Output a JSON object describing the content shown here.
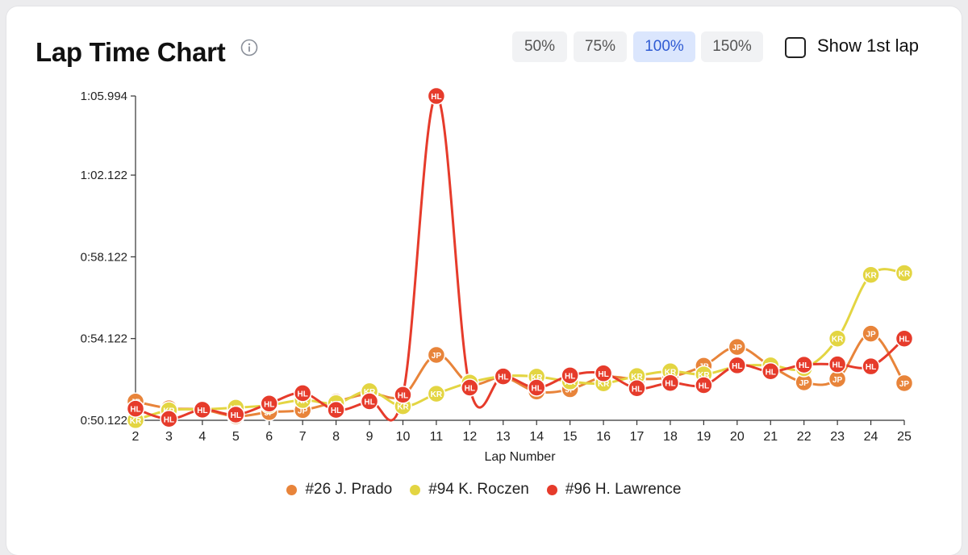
{
  "header": {
    "title": "Lap Time Chart",
    "info_icon": "info-circle-icon",
    "zoom_options": [
      "50%",
      "75%",
      "100%",
      "150%"
    ],
    "zoom_selected": "100%",
    "show_first_lap_label": "Show 1st lap",
    "show_first_lap_checked": false
  },
  "colors": {
    "accent": "#2f5bd3",
    "jp": "#e8843a",
    "kr": "#e3d542",
    "hl": "#e63b2b"
  },
  "chart_data": {
    "type": "line",
    "title": "Lap Time Chart",
    "xlabel": "Lap Number",
    "ylabel": "",
    "x": [
      2,
      3,
      4,
      5,
      6,
      7,
      8,
      9,
      10,
      11,
      12,
      13,
      14,
      15,
      16,
      17,
      18,
      19,
      20,
      21,
      22,
      23,
      24,
      25
    ],
    "y_ticks": [
      "0:50.122",
      "0:54.122",
      "0:58.122",
      "1:02.122",
      "1:05.994"
    ],
    "y_tick_values": [
      50.122,
      54.122,
      58.122,
      62.122,
      65.994
    ],
    "ylim": [
      50.122,
      65.994
    ],
    "grid": false,
    "legend_position": "bottom",
    "series": [
      {
        "name": "#26 J. Prado",
        "abbr": "JP",
        "color": "#e8843a",
        "values": [
          51.04,
          50.71,
          50.65,
          50.32,
          50.52,
          50.62,
          51.03,
          51.43,
          51.33,
          53.32,
          51.92,
          52.22,
          51.53,
          51.64,
          52.23,
          52.14,
          52.24,
          52.79,
          53.71,
          52.78,
          51.98,
          52.14,
          54.36,
          51.94
        ]
      },
      {
        "name": "#94 K. Roczen",
        "abbr": "KR",
        "color": "#e3d542",
        "values": [
          50.13,
          50.61,
          50.66,
          50.74,
          50.86,
          51.11,
          50.96,
          51.55,
          50.81,
          51.42,
          51.97,
          52.28,
          52.26,
          52.02,
          51.93,
          52.29,
          52.52,
          52.37,
          52.76,
          52.81,
          52.67,
          54.12,
          57.24,
          57.33
        ]
      },
      {
        "name": "#96 H. Lawrence",
        "abbr": "HL",
        "color": "#e63b2b",
        "values": [
          50.69,
          50.19,
          50.64,
          50.4,
          50.94,
          51.45,
          50.63,
          51.05,
          51.37,
          65.994,
          51.72,
          52.27,
          51.72,
          52.32,
          52.42,
          51.69,
          51.95,
          51.84,
          52.81,
          52.52,
          52.84,
          52.86,
          52.76,
          54.12
        ]
      }
    ]
  }
}
